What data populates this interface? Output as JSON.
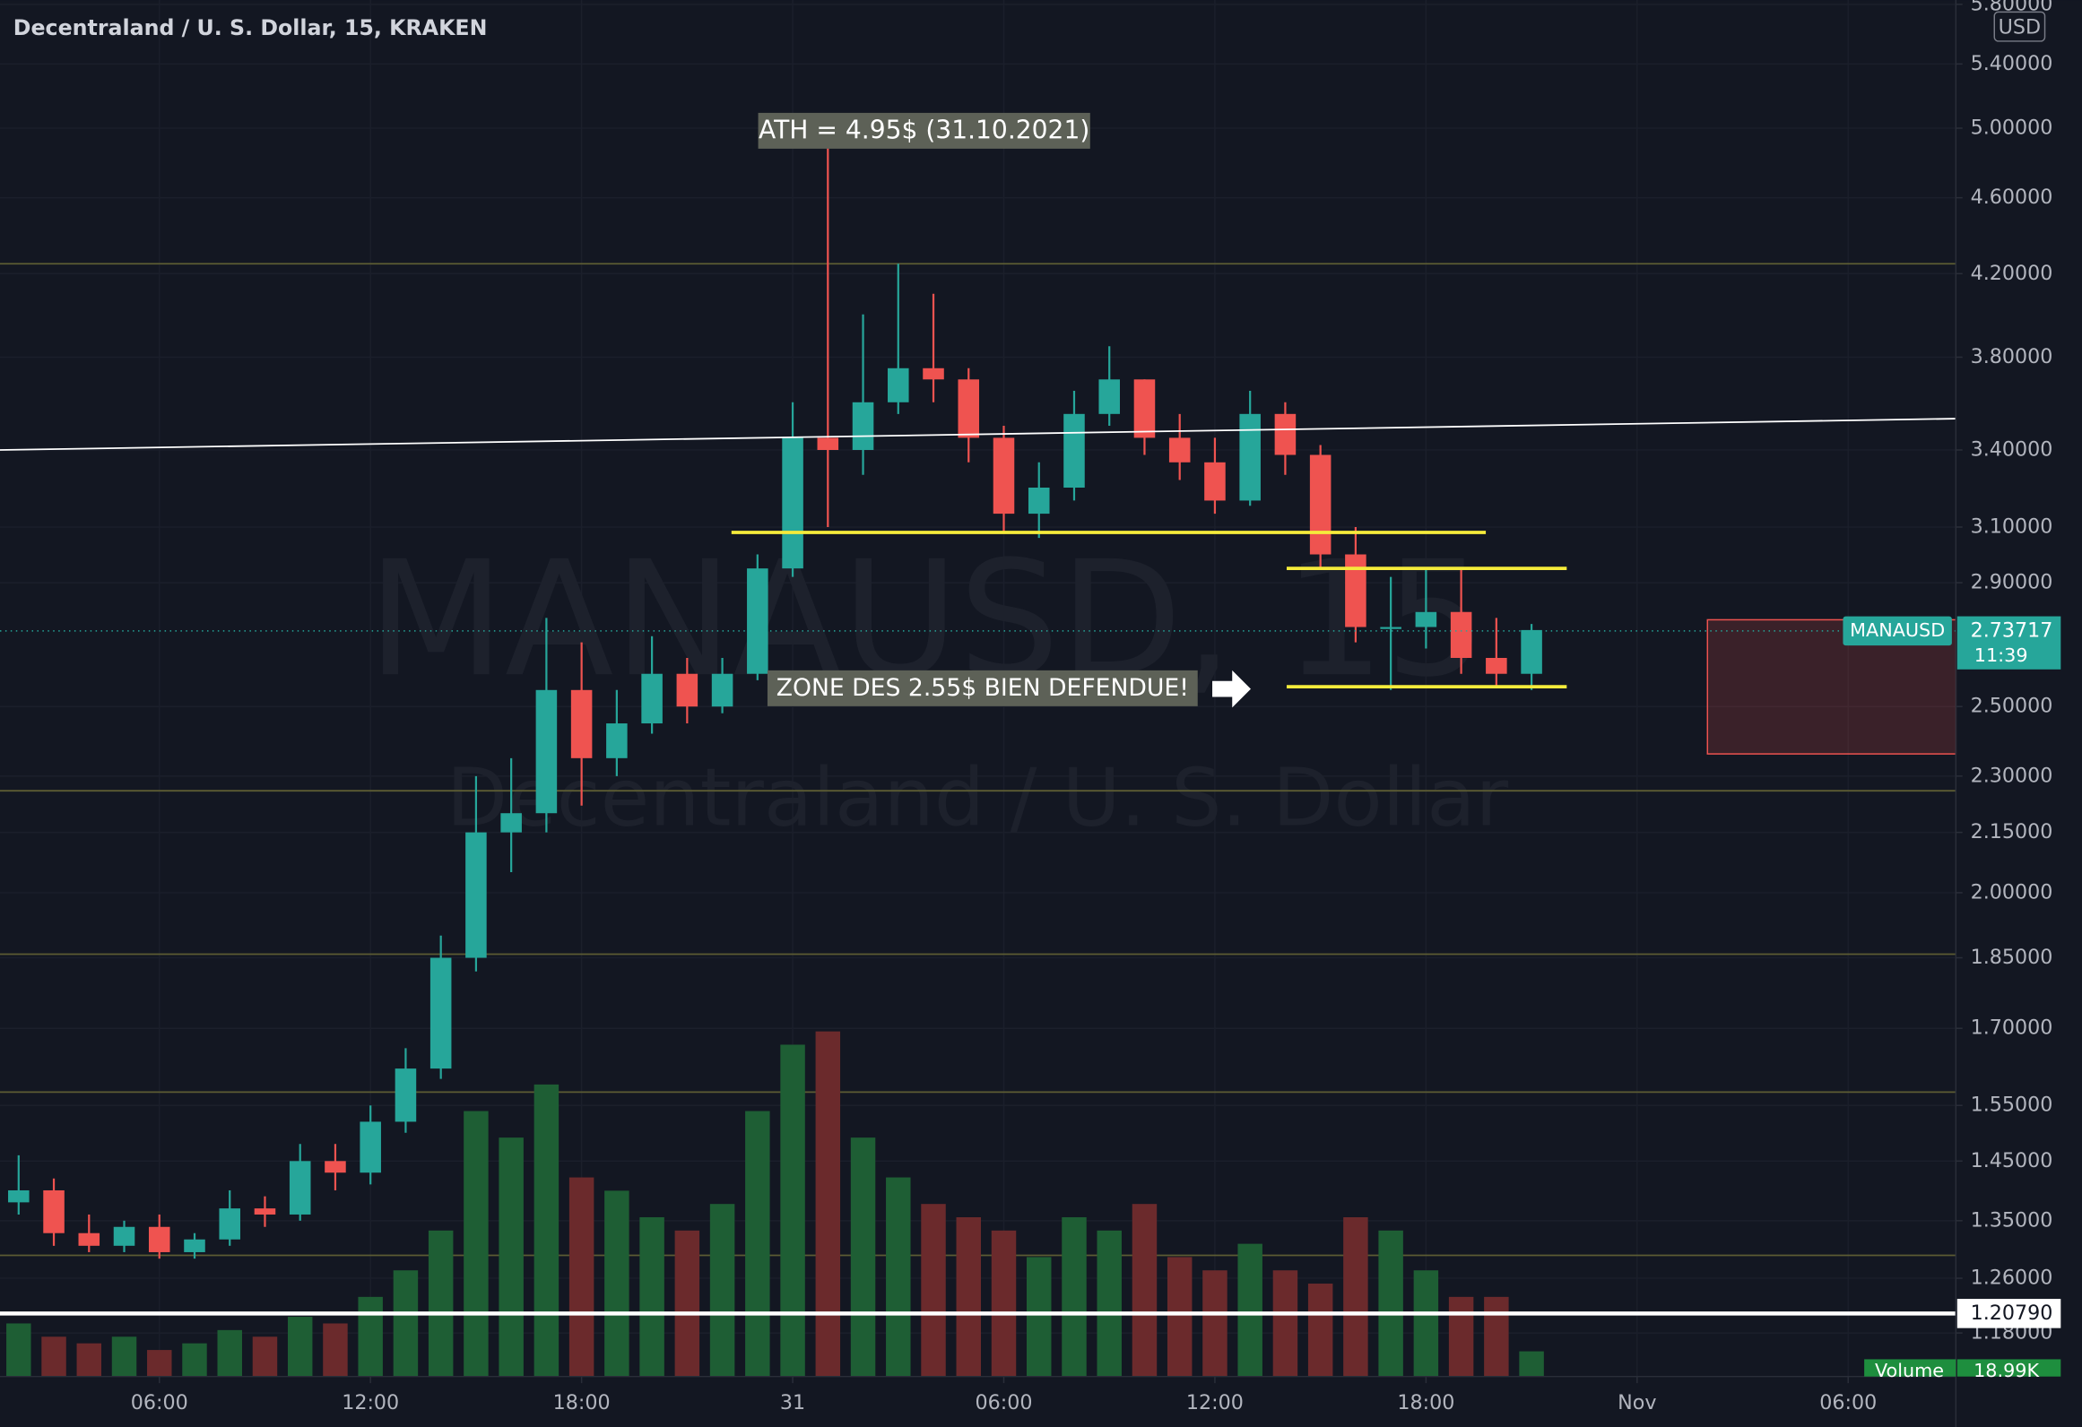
{
  "chart_data": {
    "type": "candlestick",
    "title": "Decentraland / U. S. Dollar, 15, KRAKEN",
    "currency": "USD",
    "watermark": "MANAUSD, 15",
    "watermark_subtitle": "Decentraland / U. S. Dollar",
    "log_scale": true,
    "grid": true,
    "up_color": "#26a69a",
    "down_color": "#ef5350",
    "x": [
      2,
      3,
      4,
      5,
      6,
      7,
      8,
      9,
      10,
      11,
      12,
      13,
      14,
      15,
      16,
      17,
      18,
      19,
      20,
      21,
      22,
      23,
      24,
      25,
      26,
      27,
      28,
      29,
      30,
      31,
      32,
      33,
      34,
      35,
      36,
      37,
      38,
      39,
      40,
      41,
      42,
      43,
      44,
      45
    ],
    "open": [
      1.38,
      1.4,
      1.33,
      1.31,
      1.34,
      1.3,
      1.32,
      1.37,
      1.36,
      1.45,
      1.43,
      1.52,
      1.62,
      1.85,
      2.15,
      2.2,
      2.55,
      2.35,
      2.45,
      2.6,
      2.5,
      2.6,
      2.95,
      3.45,
      3.4,
      3.6,
      3.75,
      3.7,
      3.45,
      3.15,
      3.25,
      3.55,
      3.7,
      3.45,
      3.35,
      3.2,
      3.55,
      3.38,
      3.0,
      2.75,
      2.75,
      2.8,
      2.65,
      2.6
    ],
    "high": [
      1.46,
      1.42,
      1.36,
      1.35,
      1.36,
      1.33,
      1.4,
      1.39,
      1.48,
      1.48,
      1.55,
      1.66,
      1.9,
      2.3,
      2.35,
      2.78,
      2.7,
      2.55,
      2.72,
      2.65,
      2.65,
      3.0,
      3.6,
      4.95,
      4.0,
      4.25,
      4.1,
      3.75,
      3.5,
      3.35,
      3.65,
      3.85,
      3.7,
      3.55,
      3.45,
      3.65,
      3.6,
      3.42,
      3.1,
      2.92,
      2.95,
      2.95,
      2.78,
      2.76
    ],
    "low": [
      1.36,
      1.31,
      1.3,
      1.3,
      1.29,
      1.29,
      1.31,
      1.34,
      1.35,
      1.4,
      1.41,
      1.5,
      1.6,
      1.82,
      2.05,
      2.15,
      2.22,
      2.3,
      2.42,
      2.45,
      2.48,
      2.58,
      2.92,
      3.1,
      3.3,
      3.55,
      3.6,
      3.35,
      3.08,
      3.06,
      3.2,
      3.5,
      3.38,
      3.28,
      3.15,
      3.18,
      3.3,
      2.95,
      2.7,
      2.55,
      2.68,
      2.6,
      2.56,
      2.55
    ],
    "close": [
      1.4,
      1.33,
      1.31,
      1.34,
      1.3,
      1.32,
      1.37,
      1.36,
      1.45,
      1.43,
      1.52,
      1.62,
      1.85,
      2.15,
      2.2,
      2.55,
      2.35,
      2.45,
      2.6,
      2.5,
      2.6,
      2.95,
      3.45,
      3.4,
      3.6,
      3.75,
      3.7,
      3.45,
      3.15,
      3.25,
      3.55,
      3.7,
      3.45,
      3.35,
      3.2,
      3.55,
      3.38,
      3.0,
      2.75,
      2.75,
      2.8,
      2.65,
      2.6,
      2.74
    ],
    "volume_label": "Volume",
    "volume": [
      40,
      30,
      25,
      30,
      20,
      25,
      35,
      30,
      45,
      40,
      60,
      80,
      110,
      200,
      180,
      220,
      150,
      140,
      120,
      110,
      130,
      200,
      250,
      260,
      180,
      150,
      130,
      120,
      110,
      90,
      120,
      110,
      130,
      90,
      80,
      100,
      80,
      70,
      120,
      110,
      80,
      60,
      60,
      18.99
    ],
    "volume_value_label": "18.99K",
    "xlim": [
      1.47,
      57.06
    ],
    "xticks": [
      {
        "value": 6,
        "label": "06:00"
      },
      {
        "value": 12,
        "label": "12:00"
      },
      {
        "value": 18,
        "label": "18:00"
      },
      {
        "value": 24,
        "label": "31"
      },
      {
        "value": 30,
        "label": "06:00"
      },
      {
        "value": 36,
        "label": "12:00"
      },
      {
        "value": 42,
        "label": "18:00"
      },
      {
        "value": 48,
        "label": "Nov"
      },
      {
        "value": 54,
        "label": "06:00"
      }
    ],
    "ylim": [
      1.12,
      5.83
    ],
    "yticks": [
      {
        "value": 5.8,
        "label": "5.80000"
      },
      {
        "value": 5.4,
        "label": "5.40000"
      },
      {
        "value": 5.0,
        "label": "5.00000"
      },
      {
        "value": 4.6,
        "label": "4.60000"
      },
      {
        "value": 4.2,
        "label": "4.20000"
      },
      {
        "value": 3.8,
        "label": "3.80000"
      },
      {
        "value": 3.4,
        "label": "3.40000"
      },
      {
        "value": 3.1,
        "label": "3.10000"
      },
      {
        "value": 2.9,
        "label": "2.90000"
      },
      {
        "value": 2.5,
        "label": "2.50000"
      },
      {
        "value": 2.3,
        "label": "2.30000"
      },
      {
        "value": 2.15,
        "label": "2.15000"
      },
      {
        "value": 2.0,
        "label": "2.00000"
      },
      {
        "value": 1.85,
        "label": "1.85000"
      },
      {
        "value": 1.7,
        "label": "1.70000"
      },
      {
        "value": 1.55,
        "label": "1.55000"
      },
      {
        "value": 1.45,
        "label": "1.45000"
      },
      {
        "value": 1.35,
        "label": "1.35000"
      },
      {
        "value": 1.26,
        "label": "1.26000"
      },
      {
        "value": 1.18,
        "label": "1.18000"
      }
    ],
    "horizontal_levels": [
      4.25,
      2.26,
      1.858,
      1.575,
      1.295
    ],
    "horizontal_level_color": "#5c5c33",
    "trend_line": {
      "y": [
        3.4,
        3.53
      ],
      "color": "#ffffff"
    },
    "support_lines": [
      {
        "price": 3.08,
        "x": [
          22.26,
          43.7
        ]
      },
      {
        "price": 2.95,
        "x": [
          38.04,
          46.0
        ]
      },
      {
        "price": 2.56,
        "x": [
          38.04,
          46.0
        ]
      }
    ],
    "support_color": "#f5eb3b",
    "marked_level": {
      "value": 1.2079,
      "label": "1.20790"
    },
    "zone": {
      "xlim": [
        50.0,
        57.06
      ],
      "ylim": [
        2.362,
        2.774
      ]
    },
    "last_price": 2.73717,
    "symbol": "MANAUSD",
    "countdown": "11:39",
    "annotations": [
      "ATH = 4.95$ (31.10.2021)",
      "ZONE DES 2.55$ BIEN DEFENDUE!"
    ]
  }
}
